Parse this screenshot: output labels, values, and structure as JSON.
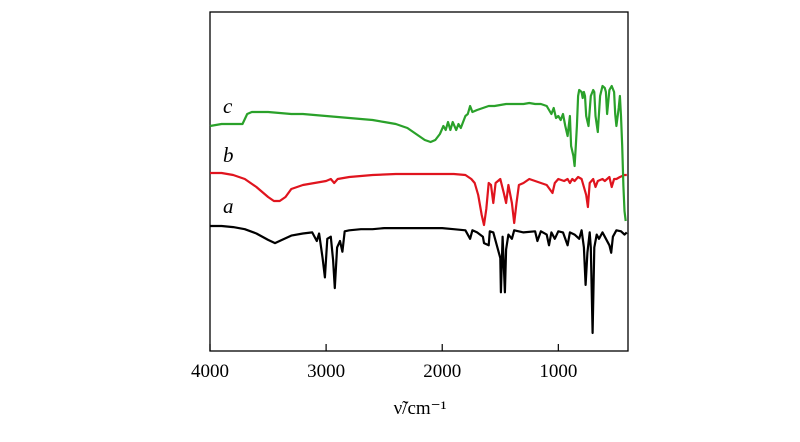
{
  "chart_data": {
    "type": "line",
    "title": "",
    "xlabel": "ν̃/cm⁻¹",
    "ylabel": "",
    "xlim": [
      4000,
      400
    ],
    "x_reversed": true,
    "grid": false,
    "x_ticks": [
      4000,
      3000,
      2000,
      1000
    ],
    "x_tick_labels": [
      "4000",
      "3000",
      "2000",
      "1000"
    ],
    "series": [
      {
        "name": "a",
        "color": "#000000",
        "points": [
          [
            4000,
            0.0
          ],
          [
            3900,
            0.0
          ],
          [
            3800,
            0.01
          ],
          [
            3700,
            0.03
          ],
          [
            3600,
            0.07
          ],
          [
            3500,
            0.13
          ],
          [
            3440,
            0.16
          ],
          [
            3380,
            0.13
          ],
          [
            3300,
            0.09
          ],
          [
            3200,
            0.07
          ],
          [
            3120,
            0.06
          ],
          [
            3080,
            0.14
          ],
          [
            3060,
            0.07
          ],
          [
            3030,
            0.3
          ],
          [
            3010,
            0.48
          ],
          [
            2990,
            0.12
          ],
          [
            2960,
            0.1
          ],
          [
            2940,
            0.32
          ],
          [
            2925,
            0.58
          ],
          [
            2905,
            0.2
          ],
          [
            2880,
            0.14
          ],
          [
            2860,
            0.24
          ],
          [
            2840,
            0.05
          ],
          [
            2800,
            0.04
          ],
          [
            2700,
            0.03
          ],
          [
            2600,
            0.03
          ],
          [
            2500,
            0.02
          ],
          [
            2400,
            0.02
          ],
          [
            2300,
            0.02
          ],
          [
            2200,
            0.02
          ],
          [
            2100,
            0.02
          ],
          [
            2000,
            0.02
          ],
          [
            1900,
            0.03
          ],
          [
            1800,
            0.04
          ],
          [
            1760,
            0.12
          ],
          [
            1740,
            0.04
          ],
          [
            1700,
            0.06
          ],
          [
            1650,
            0.1
          ],
          [
            1640,
            0.16
          ],
          [
            1600,
            0.18
          ],
          [
            1590,
            0.05
          ],
          [
            1560,
            0.06
          ],
          [
            1500,
            0.3
          ],
          [
            1495,
            0.62
          ],
          [
            1480,
            0.1
          ],
          [
            1460,
            0.62
          ],
          [
            1450,
            0.22
          ],
          [
            1430,
            0.08
          ],
          [
            1400,
            0.12
          ],
          [
            1380,
            0.04
          ],
          [
            1300,
            0.06
          ],
          [
            1200,
            0.05
          ],
          [
            1180,
            0.14
          ],
          [
            1150,
            0.05
          ],
          [
            1100,
            0.08
          ],
          [
            1080,
            0.18
          ],
          [
            1060,
            0.06
          ],
          [
            1030,
            0.12
          ],
          [
            1000,
            0.05
          ],
          [
            960,
            0.06
          ],
          [
            920,
            0.18
          ],
          [
            900,
            0.06
          ],
          [
            860,
            0.08
          ],
          [
            820,
            0.12
          ],
          [
            800,
            0.04
          ],
          [
            780,
            0.2
          ],
          [
            765,
            0.55
          ],
          [
            750,
            0.25
          ],
          [
            730,
            0.06
          ],
          [
            720,
            0.2
          ],
          [
            705,
            1.0
          ],
          [
            690,
            0.2
          ],
          [
            670,
            0.08
          ],
          [
            650,
            0.12
          ],
          [
            620,
            0.06
          ],
          [
            600,
            0.1
          ],
          [
            560,
            0.18
          ],
          [
            545,
            0.25
          ],
          [
            530,
            0.1
          ],
          [
            500,
            0.04
          ],
          [
            460,
            0.05
          ],
          [
            430,
            0.08
          ],
          [
            410,
            0.06
          ]
        ]
      },
      {
        "name": "b",
        "color": "#e0141e",
        "points": [
          [
            4000,
            0.0
          ],
          [
            3900,
            0.0
          ],
          [
            3800,
            0.02
          ],
          [
            3700,
            0.06
          ],
          [
            3600,
            0.14
          ],
          [
            3500,
            0.24
          ],
          [
            3450,
            0.28
          ],
          [
            3400,
            0.28
          ],
          [
            3350,
            0.24
          ],
          [
            3300,
            0.16
          ],
          [
            3200,
            0.12
          ],
          [
            3100,
            0.1
          ],
          [
            3000,
            0.08
          ],
          [
            2960,
            0.06
          ],
          [
            2930,
            0.1
          ],
          [
            2900,
            0.06
          ],
          [
            2800,
            0.04
          ],
          [
            2600,
            0.02
          ],
          [
            2400,
            0.01
          ],
          [
            2200,
            0.01
          ],
          [
            2000,
            0.01
          ],
          [
            1900,
            0.01
          ],
          [
            1800,
            0.02
          ],
          [
            1750,
            0.06
          ],
          [
            1720,
            0.1
          ],
          [
            1690,
            0.22
          ],
          [
            1660,
            0.42
          ],
          [
            1640,
            0.52
          ],
          [
            1620,
            0.36
          ],
          [
            1600,
            0.1
          ],
          [
            1580,
            0.12
          ],
          [
            1560,
            0.3
          ],
          [
            1540,
            0.1
          ],
          [
            1500,
            0.06
          ],
          [
            1470,
            0.2
          ],
          [
            1450,
            0.3
          ],
          [
            1430,
            0.12
          ],
          [
            1400,
            0.3
          ],
          [
            1380,
            0.5
          ],
          [
            1360,
            0.3
          ],
          [
            1340,
            0.12
          ],
          [
            1300,
            0.1
          ],
          [
            1250,
            0.06
          ],
          [
            1200,
            0.08
          ],
          [
            1150,
            0.1
          ],
          [
            1100,
            0.12
          ],
          [
            1050,
            0.2
          ],
          [
            1030,
            0.1
          ],
          [
            1000,
            0.06
          ],
          [
            950,
            0.08
          ],
          [
            920,
            0.06
          ],
          [
            900,
            0.1
          ],
          [
            880,
            0.06
          ],
          [
            860,
            0.08
          ],
          [
            830,
            0.04
          ],
          [
            800,
            0.06
          ],
          [
            780,
            0.14
          ],
          [
            760,
            0.22
          ],
          [
            745,
            0.34
          ],
          [
            730,
            0.1
          ],
          [
            700,
            0.06
          ],
          [
            680,
            0.14
          ],
          [
            660,
            0.08
          ],
          [
            620,
            0.06
          ],
          [
            600,
            0.08
          ],
          [
            560,
            0.04
          ],
          [
            540,
            0.14
          ],
          [
            520,
            0.06
          ],
          [
            500,
            0.06
          ],
          [
            470,
            0.04
          ],
          [
            430,
            0.02
          ],
          [
            410,
            0.02
          ]
        ]
      },
      {
        "name": "c",
        "color": "#2aa12a",
        "points": [
          [
            4000,
            0.0
          ],
          [
            3900,
            -0.02
          ],
          [
            3800,
            -0.02
          ],
          [
            3720,
            -0.02
          ],
          [
            3680,
            -0.12
          ],
          [
            3640,
            -0.14
          ],
          [
            3600,
            -0.14
          ],
          [
            3500,
            -0.14
          ],
          [
            3400,
            -0.13
          ],
          [
            3300,
            -0.12
          ],
          [
            3200,
            -0.12
          ],
          [
            3100,
            -0.11
          ],
          [
            3000,
            -0.1
          ],
          [
            2900,
            -0.09
          ],
          [
            2800,
            -0.08
          ],
          [
            2700,
            -0.07
          ],
          [
            2600,
            -0.06
          ],
          [
            2500,
            -0.04
          ],
          [
            2400,
            -0.02
          ],
          [
            2300,
            0.02
          ],
          [
            2250,
            0.06
          ],
          [
            2200,
            0.1
          ],
          [
            2150,
            0.14
          ],
          [
            2100,
            0.16
          ],
          [
            2060,
            0.14
          ],
          [
            2020,
            0.08
          ],
          [
            1990,
            0.0
          ],
          [
            1970,
            0.04
          ],
          [
            1950,
            -0.04
          ],
          [
            1930,
            0.04
          ],
          [
            1910,
            -0.04
          ],
          [
            1880,
            0.04
          ],
          [
            1860,
            -0.02
          ],
          [
            1840,
            0.02
          ],
          [
            1800,
            -0.1
          ],
          [
            1780,
            -0.12
          ],
          [
            1760,
            -0.2
          ],
          [
            1740,
            -0.14
          ],
          [
            1700,
            -0.16
          ],
          [
            1650,
            -0.18
          ],
          [
            1600,
            -0.2
          ],
          [
            1550,
            -0.2
          ],
          [
            1500,
            -0.21
          ],
          [
            1450,
            -0.22
          ],
          [
            1400,
            -0.22
          ],
          [
            1350,
            -0.22
          ],
          [
            1300,
            -0.22
          ],
          [
            1250,
            -0.23
          ],
          [
            1200,
            -0.22
          ],
          [
            1150,
            -0.22
          ],
          [
            1100,
            -0.2
          ],
          [
            1060,
            -0.12
          ],
          [
            1040,
            -0.18
          ],
          [
            1020,
            -0.08
          ],
          [
            1000,
            -0.1
          ],
          [
            980,
            -0.06
          ],
          [
            960,
            -0.12
          ],
          [
            940,
            0.0
          ],
          [
            920,
            0.1
          ],
          [
            900,
            -0.1
          ],
          [
            890,
            0.2
          ],
          [
            870,
            0.3
          ],
          [
            860,
            0.4
          ],
          [
            850,
            0.2
          ],
          [
            840,
            0.0
          ],
          [
            830,
            -0.3
          ],
          [
            820,
            -0.36
          ],
          [
            800,
            -0.34
          ],
          [
            790,
            -0.28
          ],
          [
            780,
            -0.34
          ],
          [
            770,
            -0.3
          ],
          [
            760,
            -0.1
          ],
          [
            740,
            0.0
          ],
          [
            720,
            -0.3
          ],
          [
            700,
            -0.36
          ],
          [
            690,
            -0.34
          ],
          [
            680,
            -0.1
          ],
          [
            660,
            0.06
          ],
          [
            640,
            -0.3
          ],
          [
            620,
            -0.4
          ],
          [
            600,
            -0.38
          ],
          [
            590,
            -0.34
          ],
          [
            580,
            -0.12
          ],
          [
            560,
            -0.36
          ],
          [
            540,
            -0.4
          ],
          [
            520,
            -0.34
          ],
          [
            510,
            -0.12
          ],
          [
            500,
            0.0
          ],
          [
            480,
            -0.18
          ],
          [
            470,
            -0.3
          ],
          [
            460,
            -0.1
          ],
          [
            450,
            0.2
          ],
          [
            440,
            0.6
          ],
          [
            430,
            0.85
          ],
          [
            420,
            0.95
          ]
        ]
      }
    ]
  }
}
